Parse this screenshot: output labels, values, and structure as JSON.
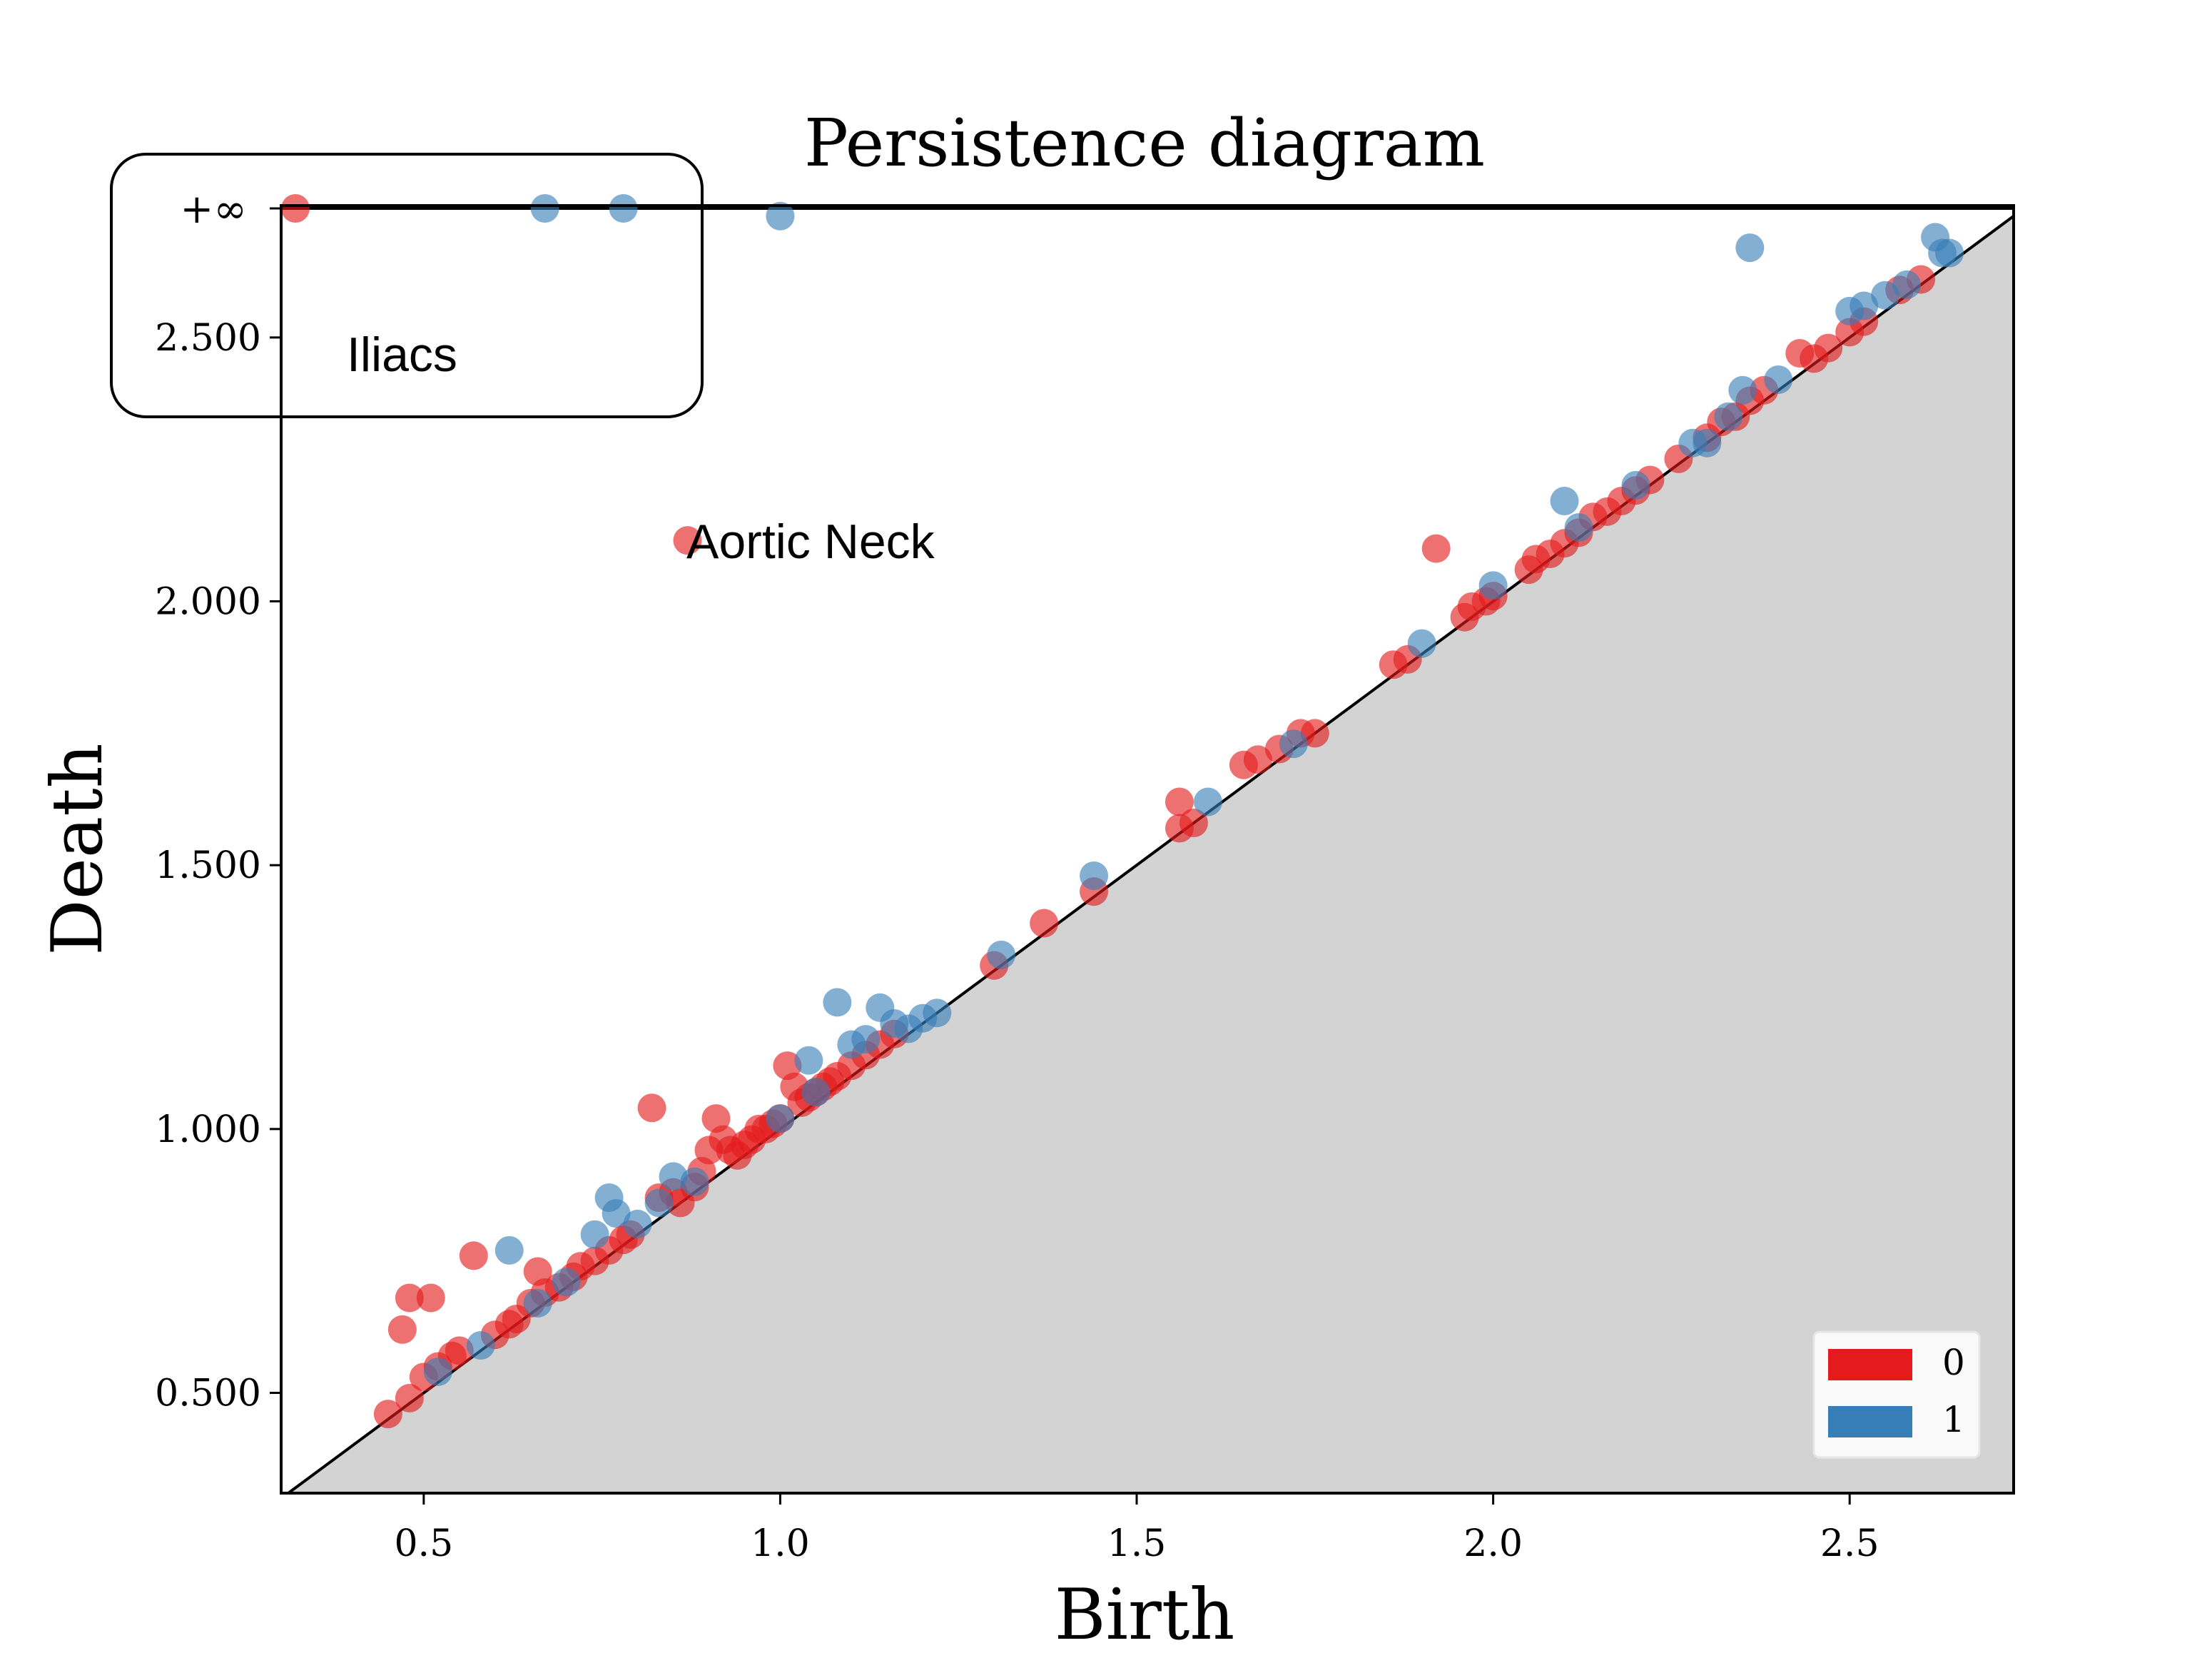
{
  "chart_data": {
    "type": "scatter",
    "title": "Persistence diagram",
    "xlabel": "Birth",
    "ylabel": "Death",
    "xlim": [
      0.3,
      2.73
    ],
    "ylim": [
      0.31,
      2.75
    ],
    "x_ticks": [
      0.5,
      1.0,
      1.5,
      2.0,
      2.5
    ],
    "x_tick_labels": [
      "0.5",
      "1.0",
      "1.5",
      "2.0",
      "2.5"
    ],
    "y_ticks": [
      0.5,
      1.0,
      1.5,
      2.0,
      2.5
    ],
    "y_tick_labels": [
      "0.500",
      "1.000",
      "1.500",
      "2.000",
      "2.500"
    ],
    "infinity_label": "+∞",
    "grid": false,
    "legend_position": "bottom-right",
    "diagonal": true,
    "series": [
      {
        "name": "0",
        "color": "#e41a1c",
        "points": [
          [
            0.32,
            "inf"
          ],
          [
            0.45,
            0.46
          ],
          [
            0.48,
            0.49
          ],
          [
            0.5,
            0.53
          ],
          [
            0.52,
            0.55
          ],
          [
            0.54,
            0.57
          ],
          [
            0.55,
            0.58
          ],
          [
            0.47,
            0.62
          ],
          [
            0.48,
            0.68
          ],
          [
            0.51,
            0.68
          ],
          [
            0.57,
            0.76
          ],
          [
            0.6,
            0.61
          ],
          [
            0.62,
            0.63
          ],
          [
            0.63,
            0.64
          ],
          [
            0.65,
            0.67
          ],
          [
            0.66,
            0.73
          ],
          [
            0.67,
            0.69
          ],
          [
            0.69,
            0.7
          ],
          [
            0.71,
            0.72
          ],
          [
            0.72,
            0.74
          ],
          [
            0.74,
            0.75
          ],
          [
            0.76,
            0.77
          ],
          [
            0.78,
            0.79
          ],
          [
            0.79,
            0.8
          ],
          [
            0.82,
            1.04
          ],
          [
            0.83,
            0.87
          ],
          [
            0.85,
            0.88
          ],
          [
            0.86,
            0.86
          ],
          [
            0.88,
            0.89
          ],
          [
            0.89,
            0.92
          ],
          [
            0.9,
            0.96
          ],
          [
            0.91,
            1.02
          ],
          [
            0.92,
            0.98
          ],
          [
            0.93,
            0.96
          ],
          [
            0.94,
            0.95
          ],
          [
            0.95,
            0.97
          ],
          [
            0.96,
            0.98
          ],
          [
            0.97,
            1.0
          ],
          [
            0.98,
            1.0
          ],
          [
            0.99,
            1.01
          ],
          [
            1.0,
            1.02
          ],
          [
            1.01,
            1.12
          ],
          [
            1.02,
            1.08
          ],
          [
            1.03,
            1.05
          ],
          [
            1.04,
            1.06
          ],
          [
            1.05,
            1.07
          ],
          [
            1.06,
            1.08
          ],
          [
            1.07,
            1.09
          ],
          [
            1.08,
            1.1
          ],
          [
            1.1,
            1.12
          ],
          [
            1.12,
            1.14
          ],
          [
            1.14,
            1.16
          ],
          [
            1.16,
            1.18
          ],
          [
            1.3,
            1.31
          ],
          [
            1.37,
            1.39
          ],
          [
            1.44,
            1.45
          ],
          [
            1.56,
            1.57
          ],
          [
            1.56,
            1.62
          ],
          [
            1.58,
            1.58
          ],
          [
            1.65,
            1.69
          ],
          [
            1.67,
            1.7
          ],
          [
            1.7,
            1.72
          ],
          [
            1.73,
            1.75
          ],
          [
            1.75,
            1.75
          ],
          [
            1.86,
            1.88
          ],
          [
            1.88,
            1.89
          ],
          [
            1.92,
            2.1
          ],
          [
            1.96,
            1.97
          ],
          [
            1.97,
            1.99
          ],
          [
            1.99,
            2.0
          ],
          [
            2.0,
            2.01
          ],
          [
            2.05,
            2.06
          ],
          [
            2.06,
            2.08
          ],
          [
            2.08,
            2.09
          ],
          [
            2.1,
            2.11
          ],
          [
            2.12,
            2.13
          ],
          [
            2.14,
            2.16
          ],
          [
            2.16,
            2.17
          ],
          [
            2.18,
            2.19
          ],
          [
            2.2,
            2.21
          ],
          [
            2.22,
            2.23
          ],
          [
            2.26,
            2.27
          ],
          [
            2.3,
            2.31
          ],
          [
            2.32,
            2.34
          ],
          [
            2.34,
            2.35
          ],
          [
            2.36,
            2.38
          ],
          [
            2.38,
            2.4
          ],
          [
            2.43,
            2.47
          ],
          [
            2.45,
            2.46
          ],
          [
            2.47,
            2.48
          ],
          [
            2.5,
            2.51
          ],
          [
            2.52,
            2.53
          ],
          [
            2.57,
            2.59
          ],
          [
            2.6,
            2.61
          ]
        ]
      },
      {
        "name": "1",
        "color": "#377eb8",
        "points": [
          [
            0.67,
            "inf"
          ],
          [
            0.78,
            "inf"
          ],
          [
            1.0,
            2.73
          ],
          [
            2.36,
            2.67
          ],
          [
            0.52,
            0.54
          ],
          [
            0.58,
            0.59
          ],
          [
            0.62,
            0.77
          ],
          [
            0.66,
            0.67
          ],
          [
            0.7,
            0.71
          ],
          [
            0.74,
            0.8
          ],
          [
            0.76,
            0.87
          ],
          [
            0.77,
            0.84
          ],
          [
            0.8,
            0.82
          ],
          [
            0.83,
            0.86
          ],
          [
            0.85,
            0.91
          ],
          [
            0.88,
            0.9
          ],
          [
            1.0,
            1.02
          ],
          [
            1.04,
            1.13
          ],
          [
            1.05,
            1.07
          ],
          [
            1.08,
            1.24
          ],
          [
            1.1,
            1.16
          ],
          [
            1.12,
            1.17
          ],
          [
            1.14,
            1.23
          ],
          [
            1.16,
            1.2
          ],
          [
            1.18,
            1.19
          ],
          [
            1.2,
            1.21
          ],
          [
            1.22,
            1.22
          ],
          [
            1.31,
            1.33
          ],
          [
            1.44,
            1.48
          ],
          [
            1.6,
            1.62
          ],
          [
            1.72,
            1.73
          ],
          [
            1.9,
            1.92
          ],
          [
            2.0,
            2.03
          ],
          [
            2.1,
            2.19
          ],
          [
            2.12,
            2.14
          ],
          [
            2.2,
            2.22
          ],
          [
            2.28,
            2.3
          ],
          [
            2.3,
            2.3
          ],
          [
            2.33,
            2.35
          ],
          [
            2.35,
            2.4
          ],
          [
            2.4,
            2.42
          ],
          [
            2.5,
            2.55
          ],
          [
            2.52,
            2.56
          ],
          [
            2.55,
            2.58
          ],
          [
            2.58,
            2.6
          ],
          [
            2.62,
            2.69
          ],
          [
            2.63,
            2.66
          ],
          [
            2.64,
            2.66
          ]
        ]
      }
    ],
    "annotations": [
      {
        "text": "Iliacs",
        "x": 0.39,
        "y": 2.47
      },
      {
        "text": "Aortic Neck",
        "x": 0.87,
        "y": 2.11
      }
    ]
  }
}
